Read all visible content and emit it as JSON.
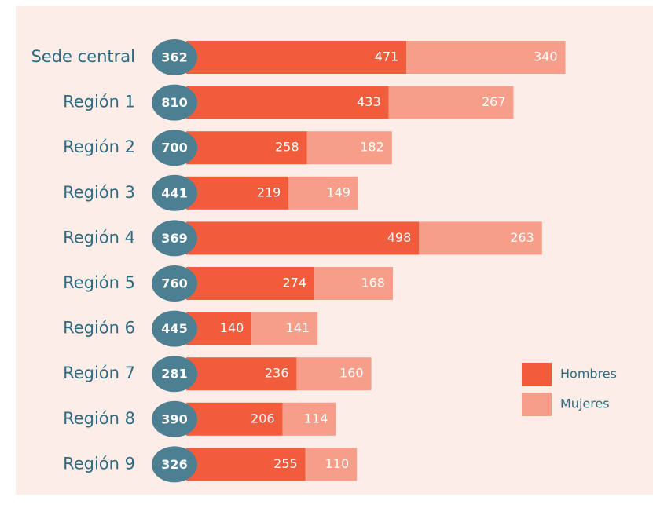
{
  "chart_data": {
    "type": "bar",
    "orientation": "horizontal",
    "stacked": true,
    "categories": [
      "Sede central",
      "Región 1",
      "Región 2",
      "Región 3",
      "Región 4",
      "Región 5",
      "Región 6",
      "Región 7",
      "Región 8",
      "Región 9"
    ],
    "circle_values": [
      362,
      810,
      700,
      441,
      369,
      760,
      445,
      281,
      390,
      326
    ],
    "circle_color": "#4d7f93",
    "series": [
      {
        "name": "Hombres",
        "color": "#f15d3c",
        "values": [
          471,
          433,
          258,
          219,
          498,
          274,
          140,
          236,
          206,
          255
        ]
      },
      {
        "name": "Mujeres",
        "color": "#f79e8a",
        "values": [
          340,
          267,
          182,
          149,
          263,
          168,
          141,
          160,
          114,
          110
        ]
      }
    ],
    "legend": "right"
  }
}
